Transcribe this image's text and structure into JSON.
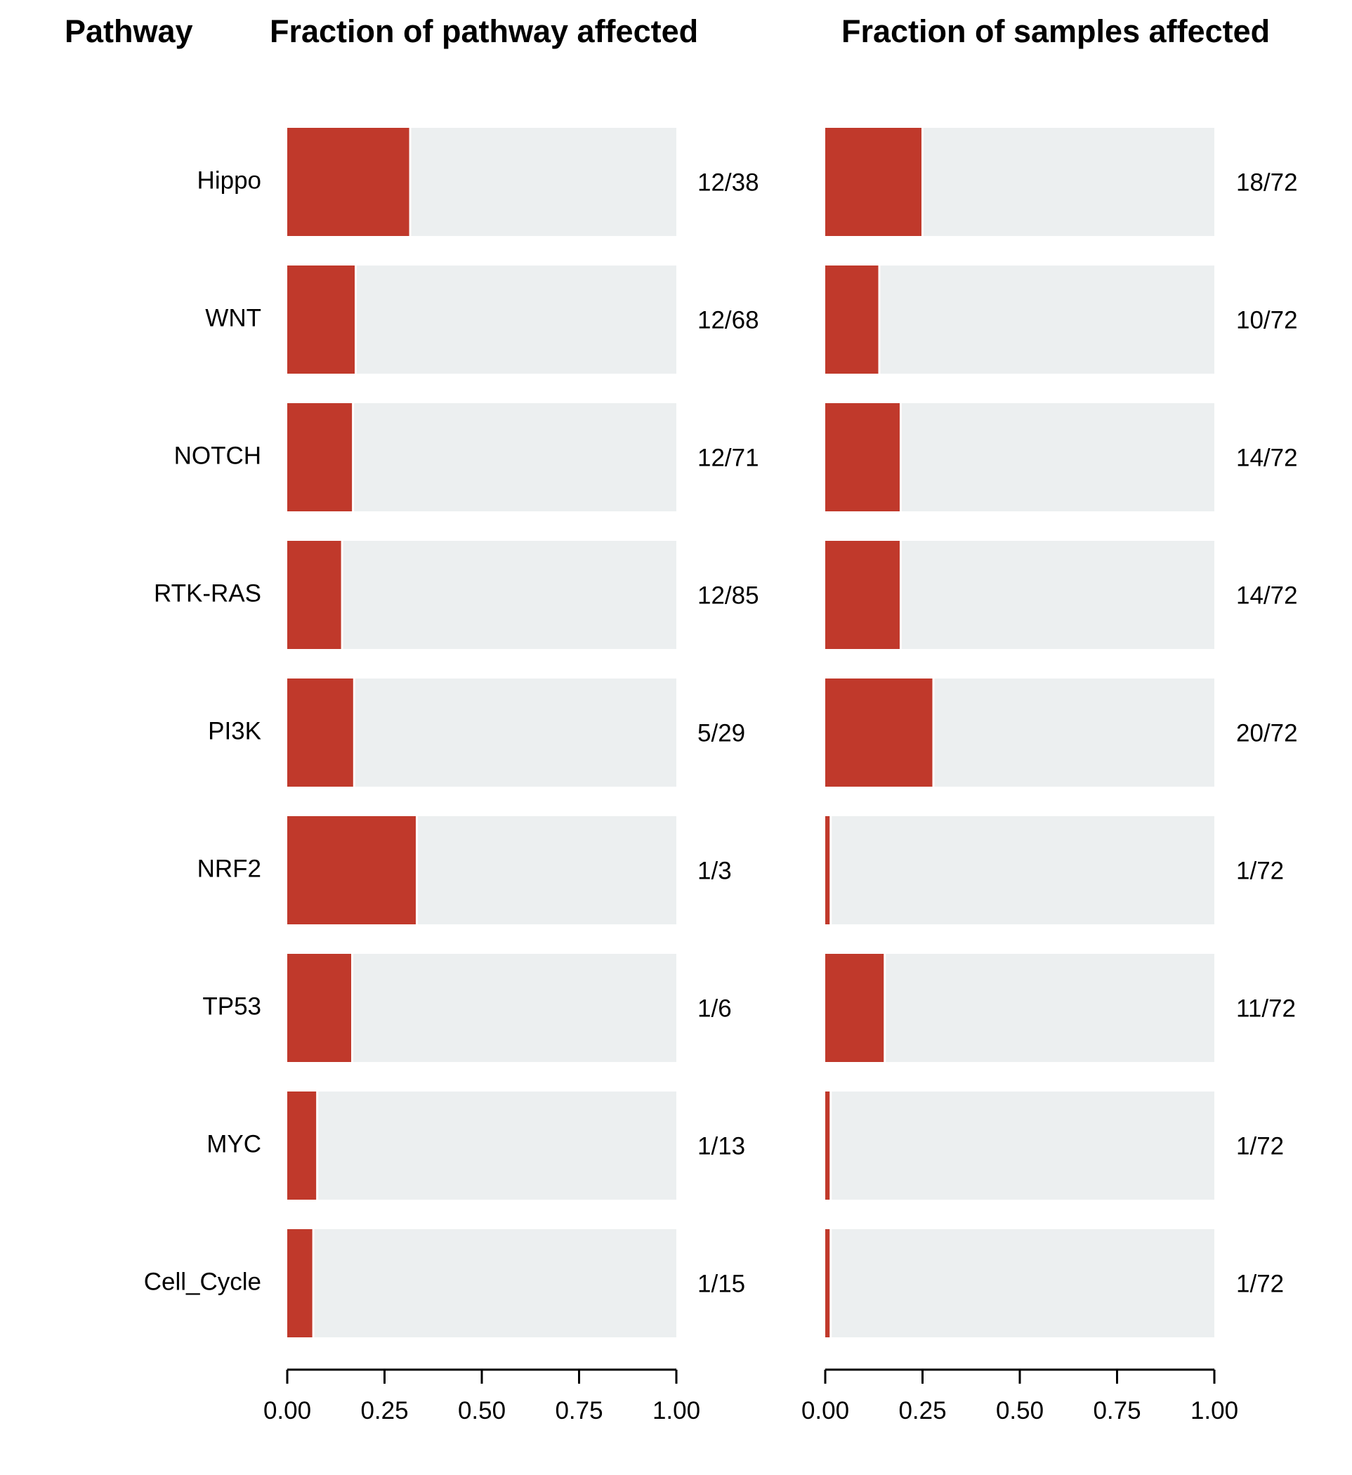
{
  "headers": {
    "pathway": "Pathway",
    "left": "Fraction of pathway affected",
    "right": "Fraction of samples affected"
  },
  "colors": {
    "affected": "#c0392b",
    "background_bar": "#eceff0",
    "axis": "#000000"
  },
  "chart_data": [
    {
      "type": "bar",
      "orientation": "horizontal",
      "stacked": true,
      "title": "Fraction of pathway affected",
      "categories": [
        "Hippo",
        "WNT",
        "NOTCH",
        "RTK-RAS",
        "PI3K",
        "NRF2",
        "TP53",
        "MYC",
        "Cell_Cycle"
      ],
      "values": [
        0.316,
        0.176,
        0.169,
        0.141,
        0.172,
        0.333,
        0.167,
        0.077,
        0.067
      ],
      "value_labels": [
        "12/38",
        "12/68",
        "12/71",
        "12/85",
        "5/29",
        "1/3",
        "1/6",
        "1/13",
        "1/15"
      ],
      "xlim": [
        0,
        1
      ],
      "xticks": [
        "0.00",
        "0.25",
        "0.50",
        "0.75",
        "1.00"
      ],
      "xtick_values": [
        0,
        0.25,
        0.5,
        0.75,
        1
      ],
      "grid": false
    },
    {
      "type": "bar",
      "orientation": "horizontal",
      "stacked": true,
      "title": "Fraction of samples affected",
      "categories": [
        "Hippo",
        "WNT",
        "NOTCH",
        "RTK-RAS",
        "PI3K",
        "NRF2",
        "TP53",
        "MYC",
        "Cell_Cycle"
      ],
      "values": [
        0.25,
        0.139,
        0.194,
        0.194,
        0.278,
        0.014,
        0.153,
        0.014,
        0.014
      ],
      "value_labels": [
        "18/72",
        "10/72",
        "14/72",
        "14/72",
        "20/72",
        "1/72",
        "11/72",
        "1/72",
        "1/72"
      ],
      "xlim": [
        0,
        1
      ],
      "xticks": [
        "0.00",
        "0.25",
        "0.50",
        "0.75",
        "1.00"
      ],
      "xtick_values": [
        0,
        0.25,
        0.5,
        0.75,
        1
      ],
      "grid": false
    }
  ]
}
